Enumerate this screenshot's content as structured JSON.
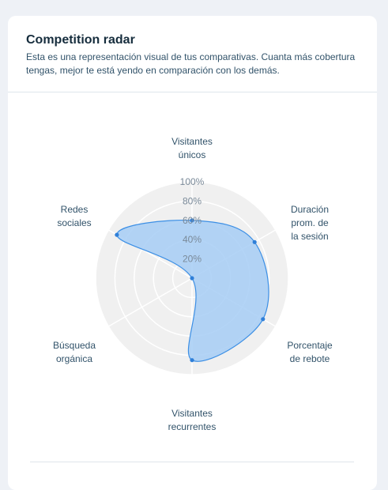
{
  "card": {
    "title": "Competition radar",
    "subtitle": "Esta es una representación visual de tus comparativas. Cuanta más cobertura tengas, mejor te está yendo en comparación con los demás."
  },
  "colors": {
    "grid_fill": "#f0f0f0",
    "grid_line": "#ffffff",
    "area_fill": "#a6cdf5",
    "area_stroke": "#3c8fe5",
    "point": "#2f7fd8"
  },
  "chart_data": {
    "type": "radar",
    "title": "",
    "axes": [
      "Visitantes únicos",
      "Duración prom. de la sesión",
      "Porcentaje de rebote",
      "Visitantes recurrentes",
      "Búsqueda orgánica",
      "Redes sociales"
    ],
    "axis_label_lines": [
      [
        "Visitantes",
        "únicos"
      ],
      [
        "Duración",
        "prom. de",
        "la sesión"
      ],
      [
        "Porcentaje",
        "de rebote"
      ],
      [
        "Visitantes",
        "recurrentes"
      ],
      [
        "Búsqueda",
        "orgánica"
      ],
      [
        "Redes",
        "sociales"
      ]
    ],
    "ring_ticks": [
      "20%",
      "40%",
      "60%",
      "80%",
      "100%"
    ],
    "range": [
      0,
      100
    ],
    "series": [
      {
        "values": [
          60,
          75,
          85,
          85,
          0,
          90
        ]
      }
    ],
    "grid": true
  }
}
